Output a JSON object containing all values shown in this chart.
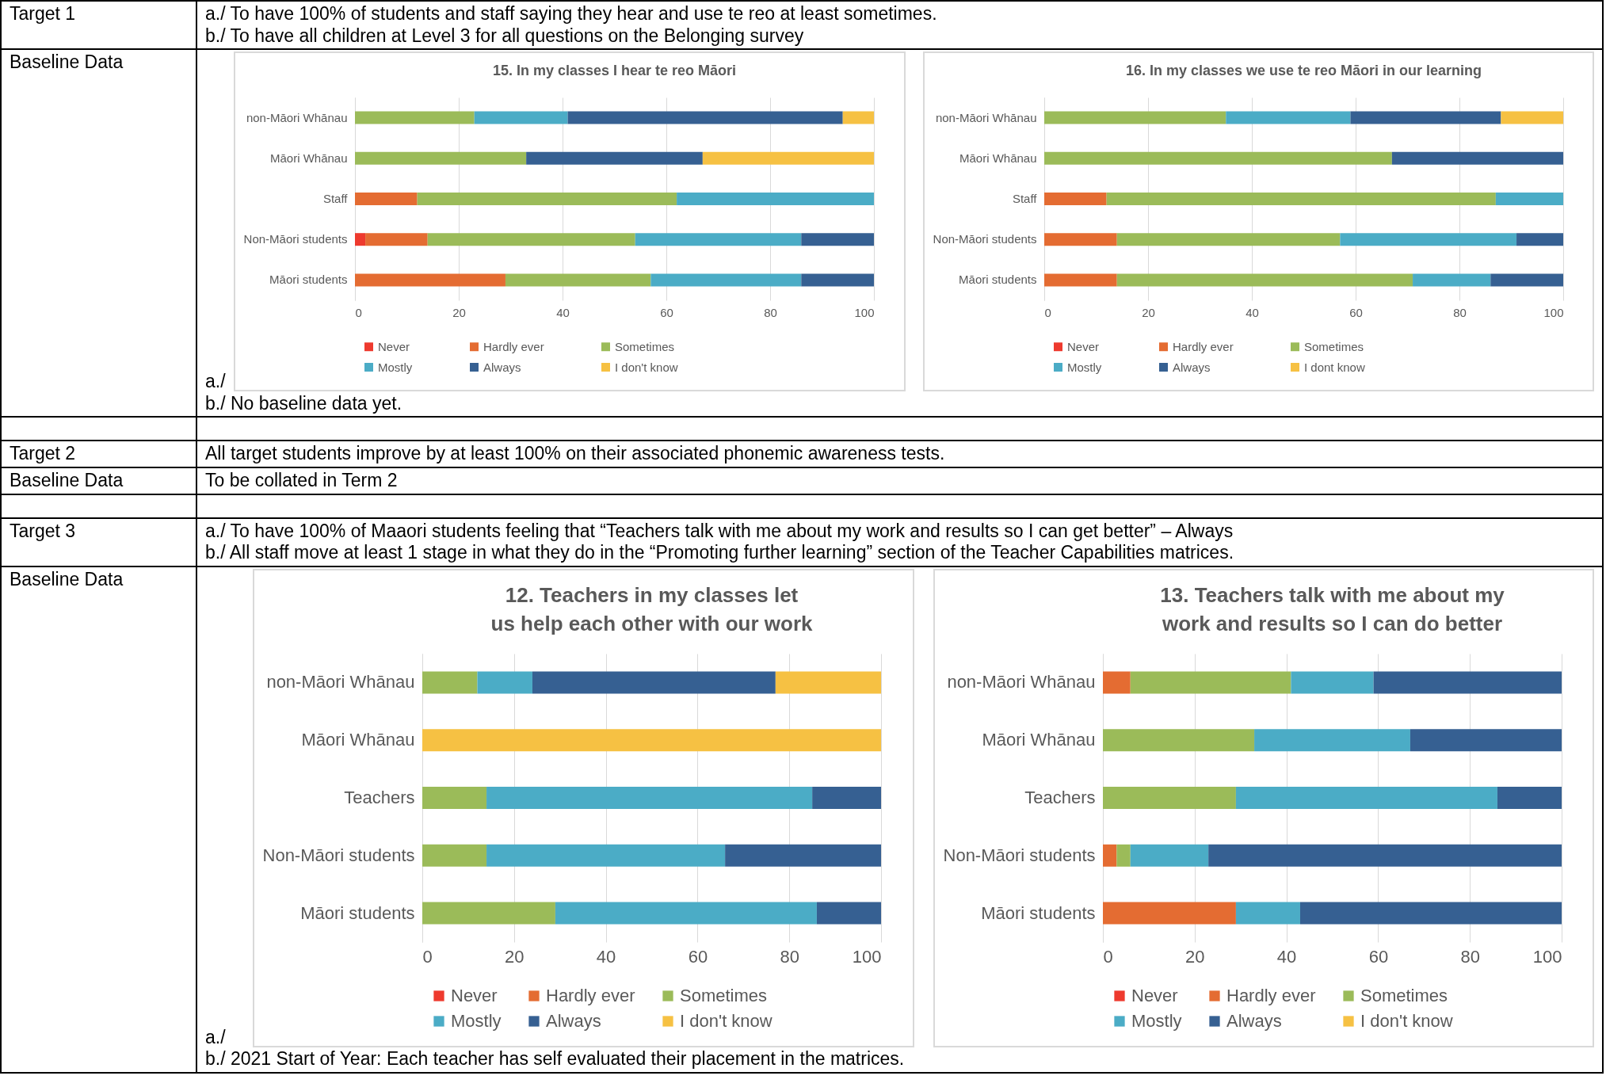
{
  "chart_data": [
    {
      "type": "other",
      "annotations": [
        "Target 1",
        "a./ To have 100% of students and staff saying they hear and use te reo at least sometimes.",
        "b./ To have all children at Level 3 for all questions on the Belonging survey",
        "Baseline Data"
      ]
    },
    {
      "type": "bar",
      "orientation": "horizontal",
      "stacked": true,
      "title": "15. In my classes I hear te reo Māori",
      "categories": [
        "non-Māori Whānau",
        "Māori Whānau",
        "Staff",
        "Non-Māori students",
        "Māori students"
      ],
      "xlim": [
        0,
        100
      ],
      "xticks": [
        0,
        20,
        40,
        60,
        80,
        100
      ],
      "grid": "x",
      "legend": "bottom",
      "series": [
        {
          "name": "Never",
          "color": "#ee3a2e",
          "values": [
            null,
            null,
            null,
            2,
            null
          ]
        },
        {
          "name": "Hardly ever",
          "color": "#e46c32",
          "values": [
            null,
            null,
            12,
            12,
            29
          ]
        },
        {
          "name": "Sometimes",
          "color": "#9bbb59",
          "values": [
            23,
            33,
            50,
            40,
            28
          ]
        },
        {
          "name": "Mostly",
          "color": "#4bacc6",
          "values": [
            18,
            null,
            38,
            32,
            29
          ]
        },
        {
          "name": "Always",
          "color": "#366092",
          "values": [
            53,
            34,
            null,
            14,
            14
          ]
        },
        {
          "name": "I don't know",
          "color": "#f6c143",
          "values": [
            6,
            33,
            null,
            null,
            null
          ]
        }
      ]
    },
    {
      "type": "bar",
      "orientation": "horizontal",
      "stacked": true,
      "title": "16. In my classes we use te reo Māori in our learning",
      "categories": [
        "non-Māori Whānau",
        "Māori Whānau",
        "Staff",
        "Non-Māori students",
        "Māori students"
      ],
      "xlim": [
        0,
        100
      ],
      "xticks": [
        0,
        20,
        40,
        60,
        80,
        100
      ],
      "grid": "x",
      "legend": "bottom",
      "series": [
        {
          "name": "Never",
          "color": "#ee3a2e",
          "values": [
            null,
            null,
            null,
            null,
            null
          ]
        },
        {
          "name": "Hardly ever",
          "color": "#e46c32",
          "values": [
            null,
            null,
            12,
            14,
            14
          ]
        },
        {
          "name": "Sometimes",
          "color": "#9bbb59",
          "values": [
            35,
            67,
            75,
            43,
            57
          ]
        },
        {
          "name": "Mostly",
          "color": "#4bacc6",
          "values": [
            24,
            null,
            13,
            34,
            15
          ]
        },
        {
          "name": "Always",
          "color": "#366092",
          "values": [
            29,
            33,
            null,
            9,
            14
          ]
        },
        {
          "name": "I dont know",
          "color": "#f6c143",
          "values": [
            12,
            null,
            null,
            null,
            null
          ]
        }
      ]
    },
    {
      "type": "other",
      "annotations": [
        "a./",
        "b./ No baseline data yet.",
        "Target 2",
        "All target students improve by at least 100% on their associated phonemic awareness tests.",
        "Baseline Data",
        "To be collated in Term 2",
        "Target 3",
        "a./ To have 100% of Maaori students feeling that “Teachers talk with me about my work and results so I can get better” – Always",
        "b./ All staff move at least 1 stage in what they do in the “Promoting further learning” section of the Teacher Capabilities matrices.",
        "Baseline Data"
      ]
    },
    {
      "type": "bar",
      "orientation": "horizontal",
      "stacked": true,
      "title": "12. Teachers in my classes let us help each other with our work",
      "categories": [
        "non-Māori Whānau",
        "Māori Whānau",
        "Teachers",
        "Non-Māori students",
        "Māori students"
      ],
      "xlim": [
        0,
        100
      ],
      "xticks": [
        0,
        20,
        40,
        60,
        80,
        100
      ],
      "grid": "x",
      "legend": "bottom",
      "series": [
        {
          "name": "Never",
          "color": "#ee3a2e",
          "values": [
            null,
            null,
            null,
            null,
            null
          ]
        },
        {
          "name": "Hardly ever",
          "color": "#e46c32",
          "values": [
            null,
            null,
            null,
            null,
            null
          ]
        },
        {
          "name": "Sometimes",
          "color": "#9bbb59",
          "values": [
            12,
            null,
            14,
            14,
            29
          ]
        },
        {
          "name": "Mostly",
          "color": "#4bacc6",
          "values": [
            12,
            null,
            71,
            52,
            57
          ]
        },
        {
          "name": "Always",
          "color": "#366092",
          "values": [
            53,
            null,
            15,
            34,
            14
          ]
        },
        {
          "name": "I don't know",
          "color": "#f6c143",
          "values": [
            23,
            100,
            null,
            null,
            null
          ]
        }
      ]
    },
    {
      "type": "bar",
      "orientation": "horizontal",
      "stacked": true,
      "title": "13. Teachers talk with me about my work and results so I can do better",
      "categories": [
        "non-Māori Whānau",
        "Māori Whānau",
        "Teachers",
        "Non-Māori students",
        "Māori students"
      ],
      "xlim": [
        0,
        100
      ],
      "xticks": [
        0,
        20,
        40,
        60,
        80,
        100
      ],
      "grid": "x",
      "legend": "bottom",
      "series": [
        {
          "name": "Never",
          "color": "#ee3a2e",
          "values": [
            null,
            null,
            null,
            null,
            null
          ]
        },
        {
          "name": "Hardly ever",
          "color": "#e46c32",
          "values": [
            6,
            null,
            null,
            3,
            29
          ]
        },
        {
          "name": "Sometimes",
          "color": "#9bbb59",
          "values": [
            35,
            33,
            29,
            3,
            null
          ]
        },
        {
          "name": "Mostly",
          "color": "#4bacc6",
          "values": [
            18,
            34,
            57,
            17,
            14
          ]
        },
        {
          "name": "Always",
          "color": "#366092",
          "values": [
            41,
            33,
            14,
            77,
            57
          ]
        },
        {
          "name": "I don't know",
          "color": "#f6c143",
          "values": [
            null,
            null,
            null,
            null,
            null
          ]
        }
      ]
    },
    {
      "type": "other",
      "annotations": [
        "a./",
        "b./ 2021 Start of Year: Each teacher has self evaluated their placement in the matrices."
      ]
    }
  ]
}
